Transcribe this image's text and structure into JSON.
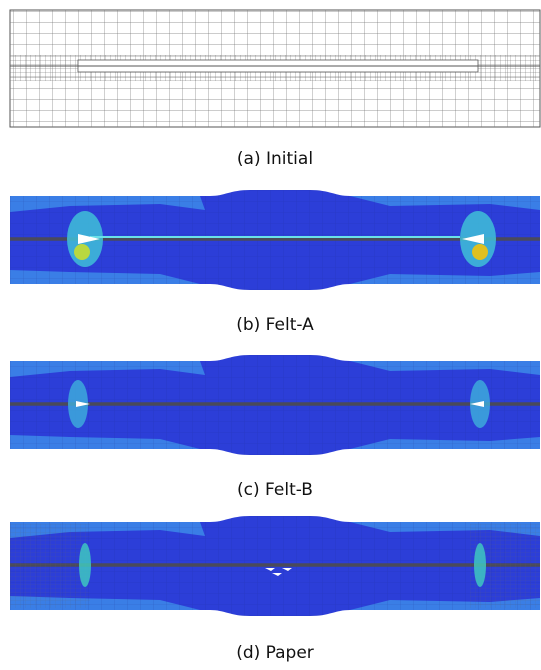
{
  "panels": [
    {
      "caption": "(a) Initial"
    },
    {
      "caption": "(b) Felt-A"
    },
    {
      "caption": "(c) Felt-B"
    },
    {
      "caption": "(d) Paper"
    }
  ]
}
